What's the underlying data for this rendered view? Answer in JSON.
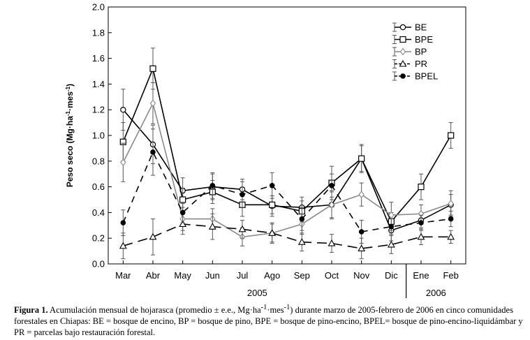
{
  "chart_data": {
    "type": "line",
    "ylabel_prefix": "Peso seco (Mg·ha",
    "ylabel_sup1": "-1",
    "ylabel_mid": "·mes",
    "ylabel_sup2": "-1",
    "ylabel_suffix": ")",
    "ylim": [
      0,
      2.0
    ],
    "yticks": [
      "0.0",
      "0.2",
      "0.4",
      "0.6",
      "0.8",
      "1.0",
      "1.2",
      "1.4",
      "1.6",
      "1.8",
      "2.0"
    ],
    "categories": [
      "Mar",
      "Abr",
      "May",
      "Jun",
      "Jul",
      "Ago",
      "Sep",
      "Oct",
      "Nov",
      "Dic",
      "Ene",
      "Feb"
    ],
    "year_groups": [
      {
        "label": "2005",
        "from": 0,
        "to": 9
      },
      {
        "label": "2006",
        "from": 10,
        "to": 11
      }
    ],
    "series": [
      {
        "name": "BE",
        "marker": "circle",
        "dash": "solid",
        "color": "#000000",
        "values": [
          1.2,
          0.93,
          0.57,
          0.6,
          0.58,
          0.45,
          0.44,
          0.46,
          0.82,
          0.26,
          0.34,
          0.46
        ],
        "errors": [
          0.16,
          0.15,
          0.1,
          0.1,
          0.08,
          0.08,
          0.08,
          0.11,
          0.1,
          0.08,
          0.06,
          0.08
        ]
      },
      {
        "name": "BPE",
        "marker": "square",
        "dash": "solid",
        "color": "#000000",
        "values": [
          0.95,
          1.52,
          0.5,
          0.56,
          0.46,
          0.46,
          0.41,
          0.63,
          0.82,
          0.33,
          0.6,
          1.0
        ],
        "errors": [
          0.15,
          0.16,
          0.09,
          0.09,
          0.09,
          0.07,
          0.08,
          0.13,
          0.11,
          0.07,
          0.1,
          0.1
        ]
      },
      {
        "name": "BP",
        "marker": "diamond",
        "dash": "solid",
        "color": "#8a8a8a",
        "values": [
          0.79,
          1.25,
          0.35,
          0.35,
          0.21,
          0.24,
          0.31,
          0.46,
          0.54,
          0.38,
          0.39,
          0.47
        ],
        "errors": [
          0.15,
          0.16,
          0.09,
          0.08,
          0.07,
          0.07,
          0.08,
          0.1,
          0.09,
          0.1,
          0.07,
          0.1
        ]
      },
      {
        "name": "PR",
        "marker": "triangle",
        "dash": "longdash",
        "color": "#000000",
        "values": [
          0.14,
          0.21,
          0.31,
          0.29,
          0.27,
          0.24,
          0.17,
          0.16,
          0.12,
          0.15,
          0.21,
          0.21
        ],
        "errors": [
          0.1,
          0.14,
          0.08,
          0.1,
          0.07,
          0.08,
          0.07,
          0.07,
          0.08,
          0.07,
          0.06,
          0.05
        ]
      },
      {
        "name": "BPEL",
        "marker": "dot",
        "dash": "dash",
        "color": "#000000",
        "values": [
          0.32,
          0.87,
          0.4,
          0.61,
          0.54,
          0.61,
          0.35,
          0.61,
          0.25,
          0.29,
          0.32,
          0.35
        ],
        "errors": [
          0.1,
          0.18,
          0.08,
          0.1,
          0.1,
          0.1,
          0.09,
          0.09,
          0.09,
          0.06,
          0.06,
          0.06
        ]
      }
    ]
  },
  "caption": {
    "label": "Figura 1.",
    "text1": " Acumulación mensual de hojarasca (promedio ± e.e., Mg·ha",
    "sup1": "-1",
    "text2": "·mes",
    "sup2": "-1",
    "text3": ") durante marzo de 2005-febrero de 2006 en cinco comunidades forestales en Chiapas: BE = bosque de encino, BP = bosque de pino, BPE = bosque de pino-encino, BPEL= bosque de pino-encino-liquidámbar y PR = parcelas bajo restauración forestal."
  }
}
